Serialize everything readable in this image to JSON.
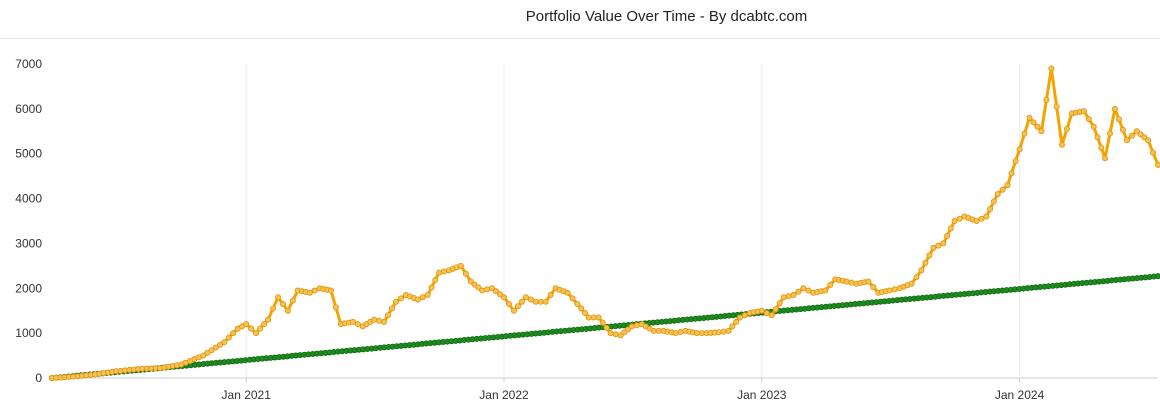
{
  "chart_data": {
    "type": "line",
    "title": "Portfolio Value Over Time - By dcabtc.com",
    "xlabel": "",
    "ylabel": "",
    "x_range": [
      "2020-04-01",
      "2024-07-15"
    ],
    "ylim": [
      0,
      7000
    ],
    "y_ticks": [
      "0",
      "1000",
      "2000",
      "3000",
      "4000",
      "5000",
      "6000",
      "7000"
    ],
    "x_ticks": [
      {
        "date": "2021-01-01",
        "label": "Jan 2021"
      },
      {
        "date": "2022-01-01",
        "label": "Jan 2022"
      },
      {
        "date": "2023-01-01",
        "label": "Jan 2023"
      },
      {
        "date": "2024-01-01",
        "label": "Jan 2024"
      }
    ],
    "grid": "vertical",
    "legend": "none",
    "series": [
      {
        "color": "#f5a300",
        "marker_fill": "#f7c15a",
        "x": [
          "2020-04-01",
          "2020-05-01",
          "2020-06-01",
          "2020-07-01",
          "2020-08-01",
          "2020-09-01",
          "2020-10-01",
          "2020-11-01",
          "2020-12-01",
          "2020-12-20",
          "2021-01-01",
          "2021-01-15",
          "2021-02-01",
          "2021-02-15",
          "2021-03-01",
          "2021-03-15",
          "2021-04-01",
          "2021-04-15",
          "2021-05-01",
          "2021-05-15",
          "2021-06-01",
          "2021-06-15",
          "2021-07-01",
          "2021-07-15",
          "2021-08-01",
          "2021-08-15",
          "2021-09-01",
          "2021-09-15",
          "2021-10-01",
          "2021-10-15",
          "2021-11-01",
          "2021-11-15",
          "2021-12-01",
          "2021-12-15",
          "2022-01-01",
          "2022-01-15",
          "2022-02-01",
          "2022-02-15",
          "2022-03-01",
          "2022-03-15",
          "2022-04-01",
          "2022-04-15",
          "2022-05-01",
          "2022-05-15",
          "2022-06-01",
          "2022-06-15",
          "2022-07-01",
          "2022-07-15",
          "2022-08-01",
          "2022-08-15",
          "2022-09-01",
          "2022-09-15",
          "2022-10-01",
          "2022-10-15",
          "2022-11-01",
          "2022-11-15",
          "2022-12-01",
          "2022-12-15",
          "2023-01-01",
          "2023-01-15",
          "2023-02-01",
          "2023-02-15",
          "2023-03-01",
          "2023-03-15",
          "2023-04-01",
          "2023-04-15",
          "2023-05-01",
          "2023-05-15",
          "2023-06-01",
          "2023-06-15",
          "2023-07-01",
          "2023-07-15",
          "2023-08-01",
          "2023-08-15",
          "2023-09-01",
          "2023-09-15",
          "2023-10-01",
          "2023-10-15",
          "2023-11-01",
          "2023-11-15",
          "2023-12-01",
          "2023-12-15",
          "2024-01-01",
          "2024-01-15",
          "2024-02-01",
          "2024-02-15",
          "2024-03-01",
          "2024-03-15",
          "2024-04-01",
          "2024-04-15",
          "2024-05-01",
          "2024-05-15",
          "2024-06-01",
          "2024-06-15",
          "2024-07-01",
          "2024-07-15"
        ],
        "values": [
          0,
          30,
          80,
          150,
          200,
          220,
          300,
          500,
          800,
          1100,
          1200,
          1000,
          1300,
          1800,
          1500,
          1950,
          1900,
          2000,
          1950,
          1200,
          1250,
          1150,
          1300,
          1250,
          1700,
          1850,
          1750,
          1850,
          2350,
          2400,
          2500,
          2150,
          1950,
          2000,
          1800,
          1500,
          1800,
          1700,
          1700,
          2000,
          1900,
          1650,
          1350,
          1350,
          1000,
          950,
          1150,
          1200,
          1050,
          1050,
          1000,
          1050,
          1000,
          1000,
          1020,
          1050,
          1350,
          1450,
          1500,
          1400,
          1800,
          1850,
          2000,
          1900,
          1950,
          2200,
          2150,
          2100,
          2150,
          1900,
          1950,
          2000,
          2100,
          2400,
          2900,
          3000,
          3500,
          3600,
          3500,
          3600,
          4100,
          4300,
          5100,
          5800,
          5500,
          6900,
          5200,
          5900,
          5950,
          5600,
          4900,
          6000,
          5300,
          5500,
          5300,
          4750
        ]
      },
      {
        "color": "#1f8a1f",
        "marker_fill": "#1f8a1f",
        "x": [
          "2020-04-01",
          "2024-07-15"
        ],
        "values": [
          0,
          2270
        ]
      }
    ]
  }
}
